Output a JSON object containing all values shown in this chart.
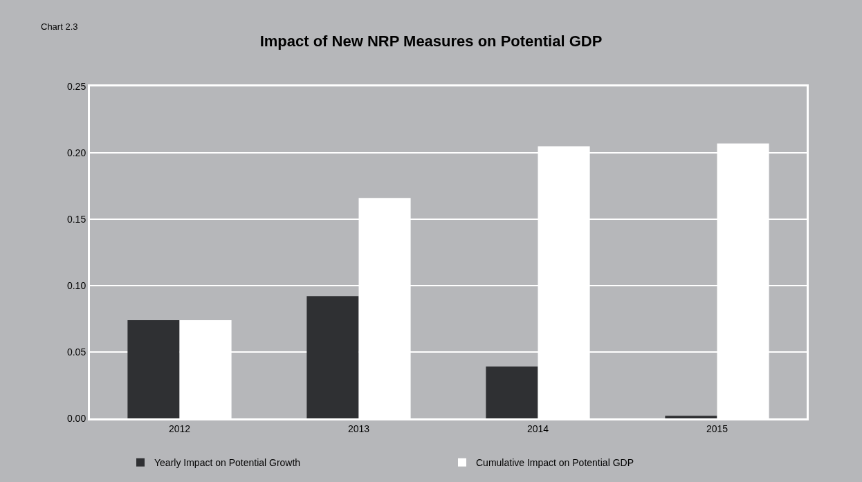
{
  "chart_data": {
    "type": "bar",
    "title": "Impact of New NRP Measures on Potential GDP",
    "annotations": [
      "Chart 2.3"
    ],
    "categories": [
      "2012",
      "2013",
      "2014",
      "2015"
    ],
    "series": [
      {
        "name": "Yearly Impact on Potential Growth",
        "color": "#2f3033",
        "values": [
          0.074,
          0.092,
          0.039,
          0.002
        ]
      },
      {
        "name": "Cumulative Impact on Potential GDP",
        "color": "#ffffff",
        "values": [
          0.074,
          0.166,
          0.205,
          0.207
        ]
      }
    ],
    "ylim": [
      0,
      0.25
    ],
    "yticks": [
      {
        "value": 0,
        "label": "0.00"
      },
      {
        "value": 0.05,
        "label": "0.05"
      },
      {
        "value": 0.1,
        "label": "0.10"
      },
      {
        "value": 0.15,
        "label": "0.15"
      },
      {
        "value": 0.2,
        "label": "0.20"
      },
      {
        "value": 0.25,
        "label": "0.25"
      }
    ],
    "grid": "y",
    "legend": "bottom"
  }
}
